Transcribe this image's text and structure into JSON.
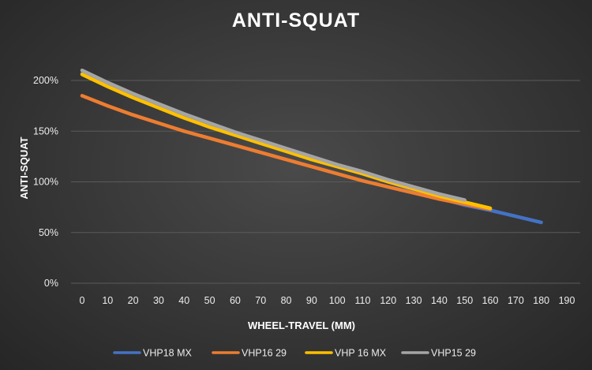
{
  "chart_data": {
    "type": "line",
    "title": "ANTI-SQUAT",
    "xlabel": "WHEEL-TRAVEL (MM)",
    "ylabel": "ANTI-SQUAT",
    "x_ticks": [
      "0",
      "10",
      "20",
      "30",
      "40",
      "50",
      "60",
      "70",
      "80",
      "90",
      "100",
      "110",
      "120",
      "130",
      "140",
      "150",
      "160",
      "170",
      "180",
      "190"
    ],
    "y_ticks": [
      "0%",
      "50%",
      "100%",
      "150%",
      "200%"
    ],
    "xlim": [
      0,
      190
    ],
    "ylim": [
      0,
      200
    ],
    "grid": "horizontal",
    "legend_position": "bottom",
    "background": "#3a3a3a",
    "series": [
      {
        "name": "VHP18 MX",
        "color": "#4472c4",
        "x": [
          0,
          10,
          20,
          30,
          40,
          50,
          60,
          70,
          80,
          90,
          100,
          110,
          120,
          130,
          140,
          150,
          160,
          170,
          180
        ],
        "y": [
          207,
          195,
          185,
          175,
          165,
          156,
          148,
          140,
          132,
          124,
          116,
          108,
          100,
          92,
          84,
          77,
          72,
          66,
          60
        ]
      },
      {
        "name": "VHP16 29",
        "color": "#ed7d31",
        "x": [
          0,
          10,
          20,
          30,
          40,
          50,
          60,
          70,
          80,
          90,
          100,
          110,
          120,
          130,
          140,
          150,
          160
        ],
        "y": [
          185,
          175,
          166,
          158,
          150,
          143,
          136,
          129,
          122,
          115,
          108,
          101,
          95,
          89,
          83,
          78,
          73
        ]
      },
      {
        "name": "VHP 16 MX",
        "color": "#ffc000",
        "x": [
          0,
          10,
          20,
          30,
          40,
          50,
          60,
          70,
          80,
          90,
          100,
          110,
          120,
          130,
          140,
          150,
          160
        ],
        "y": [
          206,
          194,
          183,
          173,
          163,
          154,
          146,
          138,
          130,
          122,
          115,
          108,
          100,
          93,
          86,
          80,
          74
        ]
      },
      {
        "name": "VHP15 29",
        "color": "#a5a5a5",
        "x": [
          0,
          10,
          20,
          30,
          40,
          50,
          60,
          70,
          80,
          90,
          100,
          110,
          120,
          130,
          140,
          150
        ],
        "y": [
          210,
          198,
          187,
          177,
          167,
          158,
          149,
          141,
          133,
          125,
          117,
          110,
          102,
          95,
          88,
          82
        ]
      }
    ]
  }
}
